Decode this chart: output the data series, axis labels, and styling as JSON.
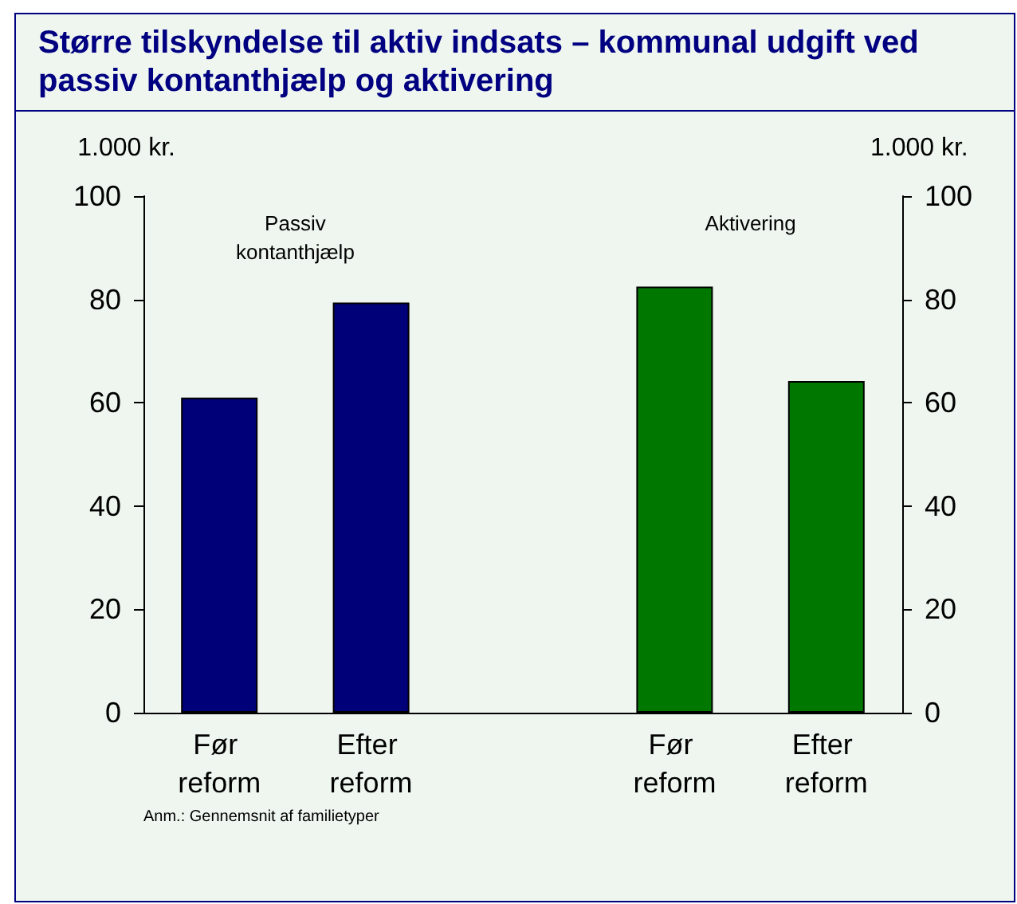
{
  "chart_data": {
    "type": "bar",
    "title": "Større tilskyndelse til aktiv indsats – kommunal udgift ved passiv kontanthjælp og aktivering",
    "ylabel": "1.000 kr.",
    "y2label": "1.000 kr.",
    "categories": [
      "Før reform",
      "Efter reform",
      null,
      "Før reform",
      "Efter reform"
    ],
    "series": [
      {
        "name": "Passiv kontanthjælp",
        "color": "#000078",
        "values": [
          61,
          79.4,
          null,
          null,
          null
        ]
      },
      {
        "name": "Aktivering",
        "color": "#007800",
        "values": [
          null,
          null,
          null,
          82.5,
          64.2
        ]
      }
    ],
    "ylim": [
      0,
      100
    ],
    "yticks": [
      0,
      20,
      40,
      60,
      80,
      100
    ],
    "y2lim": [
      0,
      100
    ],
    "y2ticks": [
      0,
      20,
      40,
      60,
      80,
      100
    ],
    "grid": false,
    "legend": false,
    "annotations": [
      "Anm.: Gennemsnit af familietyper"
    ]
  }
}
